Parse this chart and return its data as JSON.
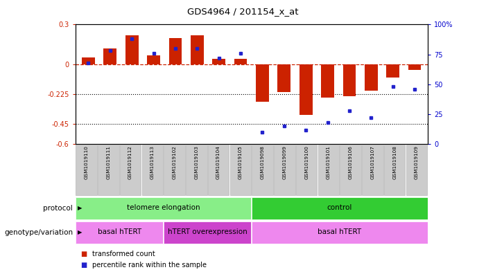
{
  "title": "GDS4964 / 201154_x_at",
  "samples": [
    "GSM1019110",
    "GSM1019111",
    "GSM1019112",
    "GSM1019113",
    "GSM1019102",
    "GSM1019103",
    "GSM1019104",
    "GSM1019105",
    "GSM1019098",
    "GSM1019099",
    "GSM1019100",
    "GSM1019101",
    "GSM1019106",
    "GSM1019107",
    "GSM1019108",
    "GSM1019109"
  ],
  "bar_values": [
    0.05,
    0.12,
    0.22,
    0.07,
    0.2,
    0.22,
    0.04,
    0.04,
    -0.28,
    -0.21,
    -0.38,
    -0.25,
    -0.24,
    -0.2,
    -0.1,
    -0.04
  ],
  "dot_values_pct": [
    68,
    78,
    88,
    76,
    80,
    80,
    72,
    76,
    10,
    15,
    12,
    18,
    28,
    22,
    48,
    46
  ],
  "ylim_left": [
    -0.6,
    0.3
  ],
  "ylim_right": [
    0,
    100
  ],
  "yticks_left": [
    0.3,
    0,
    -0.225,
    -0.45,
    -0.6
  ],
  "ytick_labels_left": [
    "0.3",
    "0",
    "-0.225",
    "-0.45",
    "-0.6"
  ],
  "yticks_right": [
    100,
    75,
    50,
    25,
    0
  ],
  "ytick_labels_right": [
    "100%",
    "75",
    "50",
    "25",
    "0"
  ],
  "hline_y": 0,
  "dotline1": -0.225,
  "dotline2": -0.45,
  "bar_color": "#cc2200",
  "dot_color": "#2222cc",
  "protocol_groups": [
    {
      "label": "telomere elongation",
      "start": 0,
      "end": 7,
      "color": "#88ee88"
    },
    {
      "label": "control",
      "start": 8,
      "end": 15,
      "color": "#33cc33"
    }
  ],
  "genotype_groups": [
    {
      "label": "basal hTERT",
      "start": 0,
      "end": 3,
      "color": "#ee88ee"
    },
    {
      "label": "hTERT overexpression",
      "start": 4,
      "end": 7,
      "color": "#cc44cc"
    },
    {
      "label": "basal hTERT",
      "start": 8,
      "end": 15,
      "color": "#ee88ee"
    }
  ],
  "legend_bar_label": "transformed count",
  "legend_dot_label": "percentile rank within the sample",
  "row_label_protocol": "protocol",
  "row_label_genotype": "genotype/variation",
  "background_color": "#ffffff",
  "tick_label_color_left": "#cc2200",
  "tick_label_color_right": "#0000cc",
  "sample_box_color": "#cccccc",
  "sample_box_edge": "#aaaaaa"
}
